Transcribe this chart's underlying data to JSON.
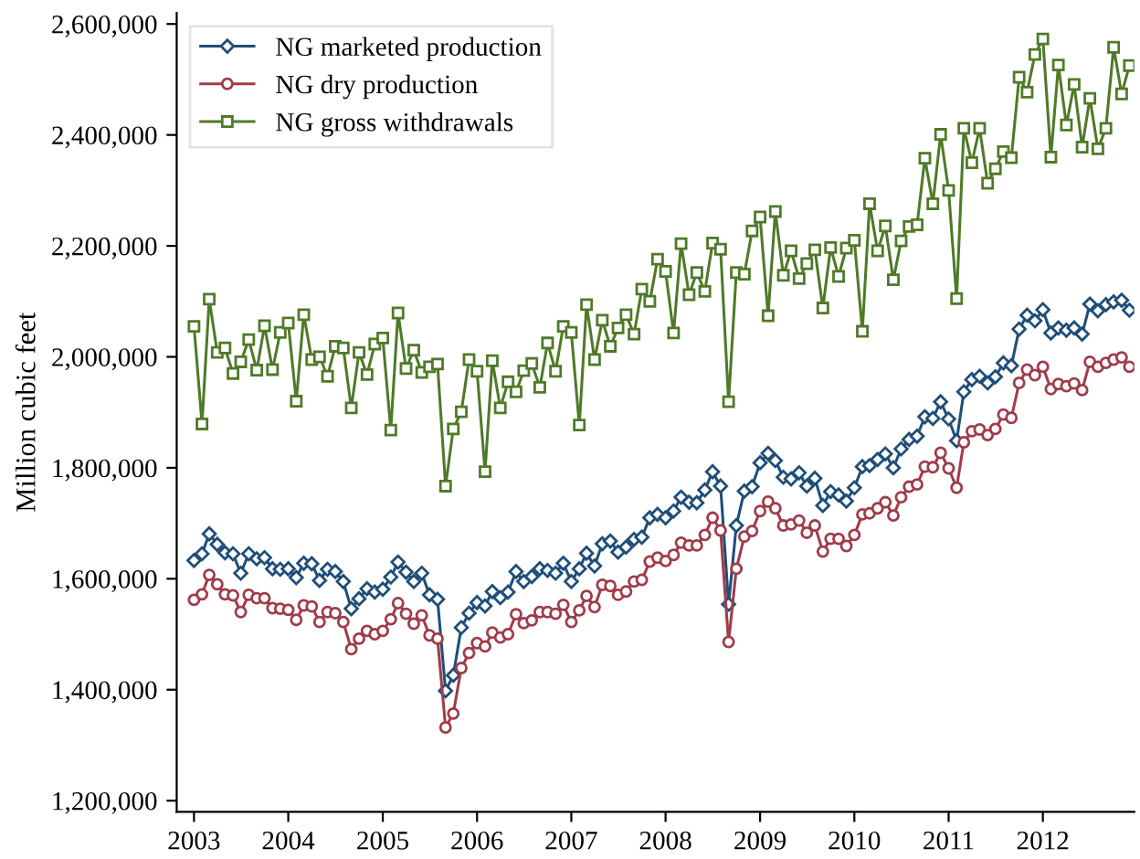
{
  "chart_data": {
    "type": "line",
    "ylabel": "Million cubic feet",
    "x": [
      "2003-01",
      "2003-02",
      "2003-03",
      "2003-04",
      "2003-05",
      "2003-06",
      "2003-07",
      "2003-08",
      "2003-09",
      "2003-10",
      "2003-11",
      "2003-12",
      "2004-01",
      "2004-02",
      "2004-03",
      "2004-04",
      "2004-05",
      "2004-06",
      "2004-07",
      "2004-08",
      "2004-09",
      "2004-10",
      "2004-11",
      "2004-12",
      "2005-01",
      "2005-02",
      "2005-03",
      "2005-04",
      "2005-05",
      "2005-06",
      "2005-07",
      "2005-08",
      "2005-09",
      "2005-10",
      "2005-11",
      "2005-12",
      "2006-01",
      "2006-02",
      "2006-03",
      "2006-04",
      "2006-05",
      "2006-06",
      "2006-07",
      "2006-08",
      "2006-09",
      "2006-10",
      "2006-11",
      "2006-12",
      "2007-01",
      "2007-02",
      "2007-03",
      "2007-04",
      "2007-05",
      "2007-06",
      "2007-07",
      "2007-08",
      "2007-09",
      "2007-10",
      "2007-11",
      "2007-12",
      "2008-01",
      "2008-02",
      "2008-03",
      "2008-04",
      "2008-05",
      "2008-06",
      "2008-07",
      "2008-08",
      "2008-09",
      "2008-10",
      "2008-11",
      "2008-12",
      "2009-01",
      "2009-02",
      "2009-03",
      "2009-04",
      "2009-05",
      "2009-06",
      "2009-07",
      "2009-08",
      "2009-09",
      "2009-10",
      "2009-11",
      "2009-12",
      "2010-01",
      "2010-02",
      "2010-03",
      "2010-04",
      "2010-05",
      "2010-06",
      "2010-07",
      "2010-08",
      "2010-09",
      "2010-10",
      "2010-11",
      "2010-12",
      "2011-01",
      "2011-02",
      "2011-03",
      "2011-04",
      "2011-05",
      "2011-06",
      "2011-07",
      "2011-08",
      "2011-09",
      "2011-10",
      "2011-11",
      "2011-12",
      "2012-01",
      "2012-02",
      "2012-03",
      "2012-04",
      "2012-05",
      "2012-06",
      "2012-07",
      "2012-08",
      "2012-09",
      "2012-10",
      "2012-11",
      "2012-12"
    ],
    "series": [
      {
        "name": "NG marketed production",
        "color": "#1f4e79",
        "marker": "diamond",
        "values": [
          1633000,
          1645000,
          1681000,
          1662000,
          1647000,
          1645000,
          1610000,
          1645000,
          1636000,
          1638000,
          1618000,
          1617000,
          1618000,
          1602000,
          1628000,
          1627000,
          1597000,
          1617000,
          1613000,
          1595000,
          1546000,
          1564000,
          1582000,
          1576000,
          1581000,
          1603000,
          1630000,
          1612000,
          1595000,
          1610000,
          1571000,
          1563000,
          1398000,
          1426000,
          1512000,
          1538000,
          1557000,
          1551000,
          1577000,
          1566000,
          1576000,
          1613000,
          1595000,
          1604000,
          1618000,
          1615000,
          1610000,
          1628000,
          1595000,
          1618000,
          1646000,
          1623000,
          1663000,
          1668000,
          1648000,
          1657000,
          1671000,
          1675000,
          1710000,
          1716000,
          1710000,
          1722000,
          1747000,
          1738000,
          1737000,
          1760000,
          1793000,
          1767000,
          1554000,
          1696000,
          1758000,
          1766000,
          1809000,
          1826000,
          1813000,
          1783000,
          1780000,
          1791000,
          1767000,
          1781000,
          1732000,
          1757000,
          1751000,
          1740000,
          1764000,
          1802000,
          1804000,
          1815000,
          1825000,
          1800000,
          1834000,
          1851000,
          1857000,
          1892000,
          1889000,
          1919000,
          1888000,
          1849000,
          1937000,
          1959000,
          1965000,
          1953000,
          1964000,
          1989000,
          1984000,
          2050000,
          2075000,
          2065000,
          2085000,
          2043000,
          2052000,
          2048000,
          2052000,
          2041000,
          2095000,
          2083000,
          2094000,
          2099000,
          2102000,
          2084000
        ]
      },
      {
        "name": "NG dry production",
        "color": "#a03c4a",
        "marker": "circle",
        "values": [
          1562000,
          1572000,
          1607000,
          1590000,
          1572000,
          1570000,
          1540000,
          1571000,
          1565000,
          1565000,
          1547000,
          1546000,
          1544000,
          1526000,
          1552000,
          1550000,
          1522000,
          1540000,
          1538000,
          1522000,
          1473000,
          1492000,
          1506000,
          1500000,
          1506000,
          1527000,
          1556000,
          1537000,
          1519000,
          1534000,
          1498000,
          1492000,
          1332000,
          1357000,
          1439000,
          1466000,
          1484000,
          1478000,
          1503000,
          1494000,
          1500000,
          1536000,
          1520000,
          1525000,
          1540000,
          1540000,
          1537000,
          1553000,
          1522000,
          1543000,
          1569000,
          1549000,
          1589000,
          1587000,
          1571000,
          1577000,
          1595000,
          1598000,
          1631000,
          1638000,
          1632000,
          1643000,
          1665000,
          1660000,
          1660000,
          1679000,
          1710000,
          1687000,
          1486000,
          1618000,
          1676000,
          1686000,
          1722000,
          1739000,
          1727000,
          1696000,
          1698000,
          1705000,
          1683000,
          1696000,
          1649000,
          1672000,
          1672000,
          1659000,
          1679000,
          1716000,
          1718000,
          1727000,
          1738000,
          1714000,
          1747000,
          1766000,
          1770000,
          1802000,
          1801000,
          1827000,
          1799000,
          1764000,
          1846000,
          1866000,
          1869000,
          1859000,
          1870000,
          1896000,
          1890000,
          1953000,
          1977000,
          1967000,
          1982000,
          1942000,
          1951000,
          1947000,
          1952000,
          1940000,
          1991000,
          1982000,
          1989000,
          1995000,
          1999000,
          1982000
        ]
      },
      {
        "name": "NG gross withdrawals",
        "color": "#4f7a28",
        "marker": "square",
        "values": [
          2055000,
          1879000,
          2104000,
          2008000,
          2016000,
          1970000,
          1991000,
          2031000,
          1976000,
          2056000,
          1977000,
          2044000,
          2061000,
          1920000,
          2076000,
          1995000,
          2000000,
          1965000,
          2019000,
          2016000,
          1908000,
          2008000,
          1968000,
          2023000,
          2034000,
          1868000,
          2079000,
          1979000,
          2012000,
          1972000,
          1982000,
          1987000,
          1767000,
          1870000,
          1901000,
          1995000,
          1974000,
          1793000,
          1993000,
          1908000,
          1955000,
          1937000,
          1975000,
          1988000,
          1945000,
          2025000,
          1974000,
          2055000,
          2044000,
          1877000,
          2094000,
          1995000,
          2066000,
          2019000,
          2052000,
          2076000,
          2041000,
          2122000,
          2100000,
          2176000,
          2154000,
          2043000,
          2204000,
          2112000,
          2152000,
          2118000,
          2205000,
          2194000,
          1919000,
          2152000,
          2149000,
          2227000,
          2252000,
          2074000,
          2262000,
          2147000,
          2191000,
          2141000,
          2168000,
          2193000,
          2088000,
          2197000,
          2145000,
          2196000,
          2210000,
          2046000,
          2276000,
          2191000,
          2236000,
          2139000,
          2209000,
          2235000,
          2238000,
          2358000,
          2276000,
          2401000,
          2300000,
          2105000,
          2412000,
          2350000,
          2412000,
          2313000,
          2339000,
          2370000,
          2359000,
          2504000,
          2477000,
          2545000,
          2573000,
          2360000,
          2526000,
          2418000,
          2491000,
          2378000,
          2466000,
          2375000,
          2412000,
          2558000,
          2474000,
          2525000
        ]
      }
    ],
    "xlim": [
      "2002-10-26",
      "2012-12-20"
    ],
    "xticks": [
      "2003",
      "2004",
      "2005",
      "2006",
      "2007",
      "2008",
      "2009",
      "2010",
      "2011",
      "2012"
    ],
    "ylim": [
      1180000,
      2620000
    ],
    "yticks": [
      {
        "value": 1200000,
        "label": "1,200,000"
      },
      {
        "value": 1400000,
        "label": "1,400,000"
      },
      {
        "value": 1600000,
        "label": "1,600,000"
      },
      {
        "value": 1800000,
        "label": "1,800,000"
      },
      {
        "value": 2000000,
        "label": "2,000,000"
      },
      {
        "value": 2200000,
        "label": "2,200,000"
      },
      {
        "value": 2400000,
        "label": "2,400,000"
      },
      {
        "value": 2600000,
        "label": "2,600,000"
      }
    ],
    "grid": false,
    "legend": "top left",
    "line_style": "solid"
  }
}
